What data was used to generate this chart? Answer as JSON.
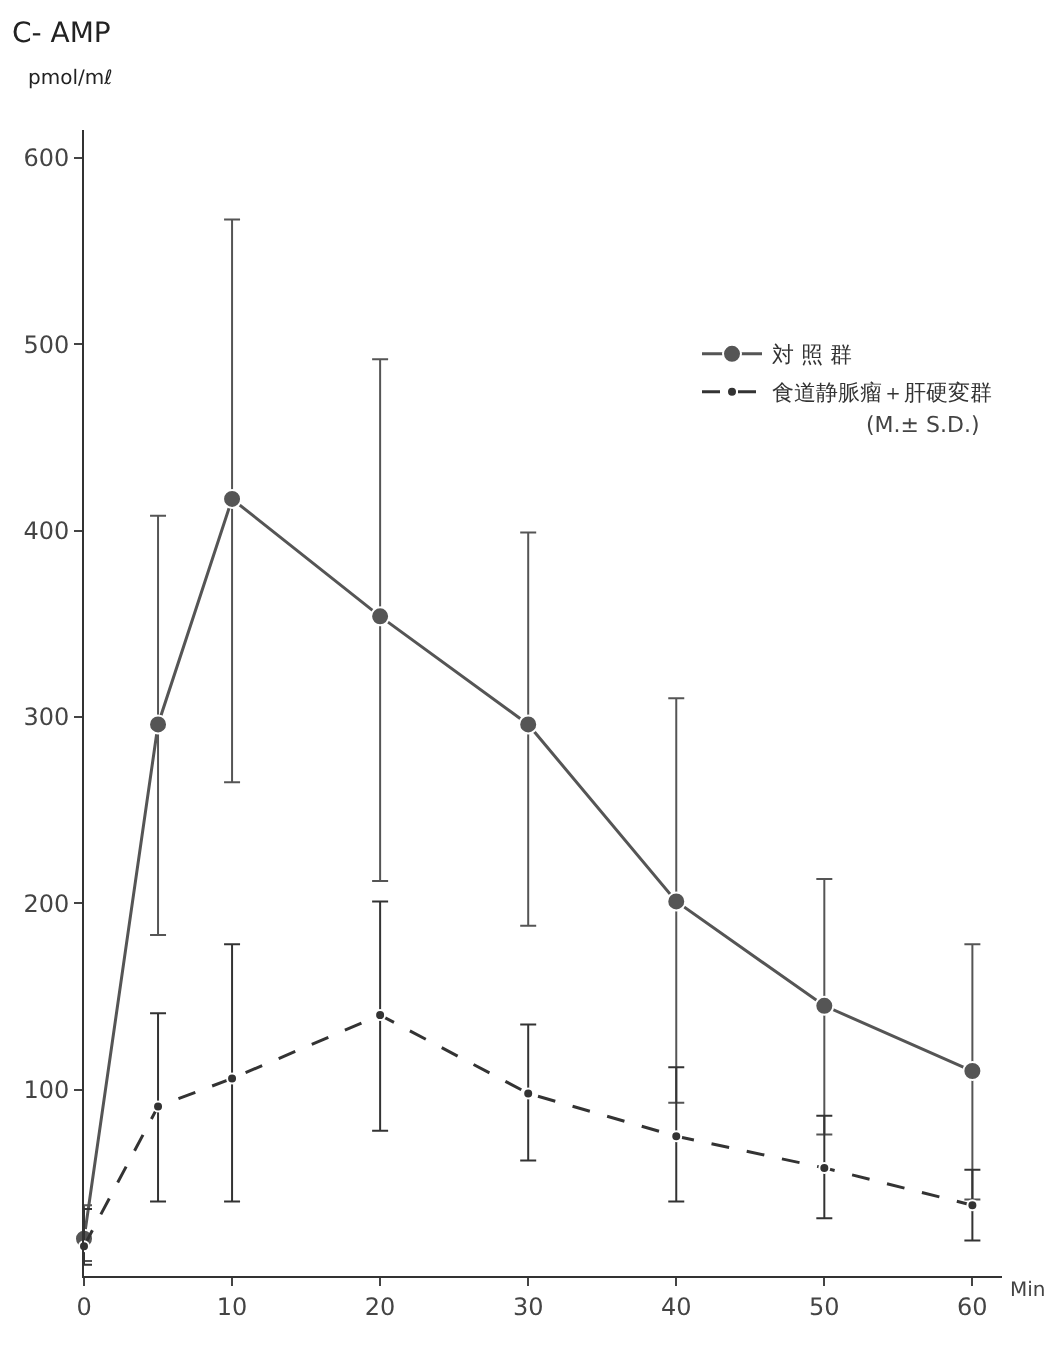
{
  "chart_data": {
    "type": "line",
    "title": "C- AMP",
    "ylabel": "pmol/mℓ",
    "xlabel": "Min",
    "x": [
      0,
      5,
      10,
      20,
      30,
      40,
      50,
      60
    ],
    "series": [
      {
        "name": "対 照 群",
        "color": "#555555",
        "line_style": "solid",
        "values": [
          20,
          296,
          417,
          354,
          296,
          201,
          145,
          110
        ],
        "errors": [
          [
            8,
            38
          ],
          [
            183,
            408
          ],
          [
            265,
            567
          ],
          [
            212,
            492
          ],
          [
            188,
            399
          ],
          [
            93,
            310
          ],
          [
            76,
            213
          ],
          [
            41,
            178
          ]
        ]
      },
      {
        "name": "食道静脈瘤＋肝硬変群",
        "color": "#333333",
        "line_style": "dashed",
        "values": [
          16,
          91,
          106,
          140,
          98,
          75,
          58,
          38
        ],
        "errors": [
          [
            6,
            36
          ],
          [
            40,
            141
          ],
          [
            40,
            178
          ],
          [
            78,
            201
          ],
          [
            62,
            135
          ],
          [
            40,
            112
          ],
          [
            31,
            86
          ],
          [
            19,
            57
          ]
        ]
      }
    ],
    "annotations": [
      "(M.± S.D.)"
    ],
    "marker": "circle",
    "legend": "top right",
    "xlim": [
      0,
      62
    ],
    "ylim": [
      0,
      615
    ],
    "xticks": [
      0,
      10,
      20,
      30,
      40,
      50,
      60
    ],
    "yticks": [
      100,
      200,
      300,
      400,
      500,
      600
    ]
  }
}
